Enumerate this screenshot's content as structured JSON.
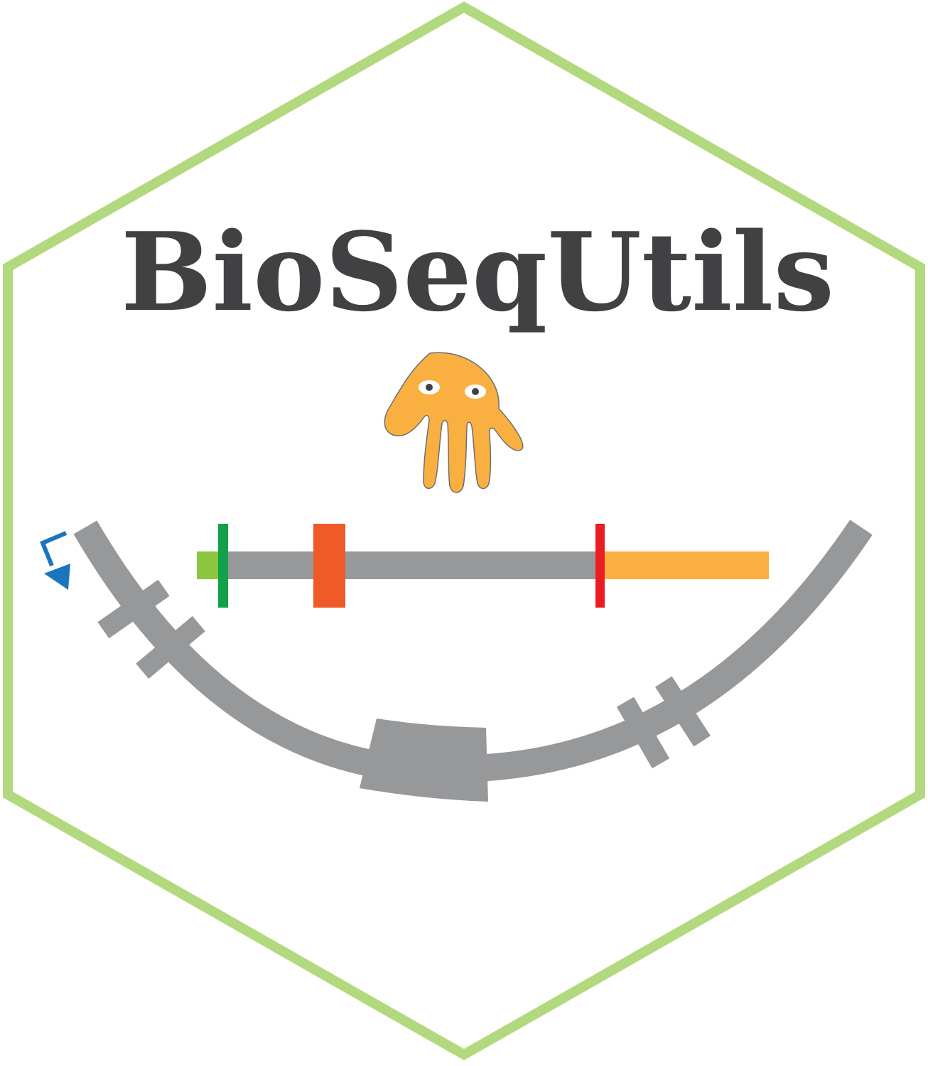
{
  "title": "BioSeqUtils",
  "colors": {
    "hex_border": "#b2d97e",
    "title": "#414042",
    "gene_body": "#97989a",
    "utr5": "#8cc63f",
    "start_codon": "#13a04a",
    "exon_mark": "#f05a28",
    "stop_codon": "#ec1c24",
    "utr3": "#f9b040",
    "mascot": "#f9b040",
    "tss_arrow": "#1b75bc"
  },
  "icons": {
    "mascot": "hand-creature-icon",
    "tss": "bent-arrow-icon"
  }
}
